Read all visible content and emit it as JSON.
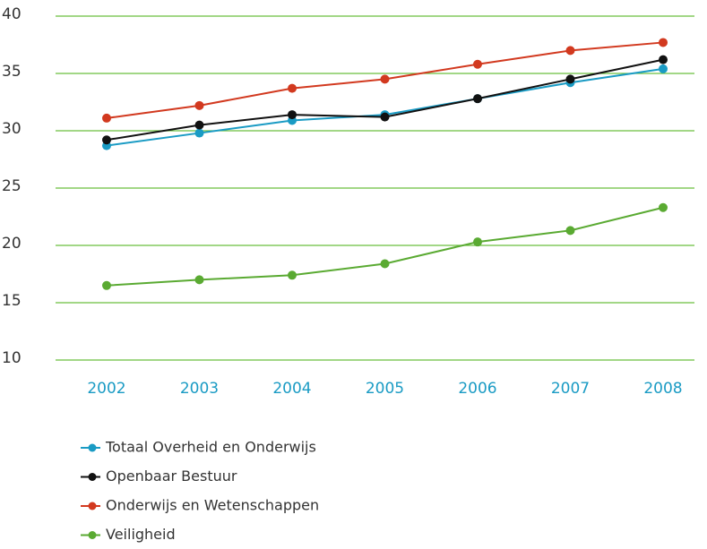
{
  "chart_data": {
    "type": "line",
    "categories": [
      "2002",
      "2003",
      "2004",
      "2005",
      "2006",
      "2007",
      "2008"
    ],
    "series": [
      {
        "name": "Totaal Overheid en Onderwijs",
        "color": "#1a9bc4",
        "values": [
          28.7,
          29.8,
          30.9,
          31.4,
          32.8,
          34.2,
          35.4
        ]
      },
      {
        "name": "Openbaar Bestuur",
        "color": "#111111",
        "values": [
          29.2,
          30.5,
          31.4,
          31.2,
          32.8,
          34.5,
          36.2
        ]
      },
      {
        "name": "Onderwijs en Wetenschappen",
        "color": "#d2391f",
        "values": [
          31.1,
          32.2,
          33.7,
          34.5,
          35.8,
          37.0,
          37.7
        ]
      },
      {
        "name": "Veiligheid",
        "color": "#5aaa32",
        "values": [
          16.5,
          17.0,
          17.4,
          18.4,
          20.3,
          21.3,
          23.3
        ]
      }
    ],
    "ylim": [
      10,
      40
    ],
    "yticks": [
      10,
      15,
      20,
      25,
      30,
      35,
      40
    ],
    "grid": true,
    "grid_color": "#6abf3f"
  }
}
